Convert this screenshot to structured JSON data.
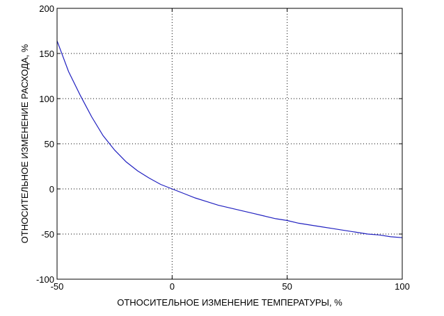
{
  "chart_data": {
    "type": "line",
    "title": "",
    "xlabel": "ОТНОСИТЕЛЬНОЕ ИЗМЕНЕНИЕ ТЕМПЕРАТУРЫ, %",
    "ylabel": "ОТНОСИТЕЛЬНОЕ ИЗМЕНЕНИЕ РАСХОДА, %",
    "xlim": [
      -50,
      100
    ],
    "ylim": [
      -100,
      200
    ],
    "xticks": [
      -50,
      0,
      50,
      100
    ],
    "yticks": [
      -100,
      -50,
      0,
      50,
      100,
      150,
      200
    ],
    "xtick_labels": [
      "-50",
      "0",
      "50",
      "100"
    ],
    "ytick_labels": [
      "-100",
      "-50",
      "0",
      "50",
      "100",
      "150",
      "200"
    ],
    "grid": true,
    "grid_style": "dotted",
    "series": [
      {
        "color": "#2020c0",
        "x": [
          -50,
          -45,
          -40,
          -35,
          -30,
          -25,
          -20,
          -15,
          -10,
          -5,
          0,
          5,
          10,
          15,
          20,
          25,
          30,
          35,
          40,
          45,
          50,
          55,
          60,
          65,
          70,
          75,
          80,
          85,
          90,
          95,
          100
        ],
        "y": [
          164,
          130,
          104,
          80,
          59,
          43,
          30,
          20,
          12,
          5,
          0,
          -5,
          -10,
          -14,
          -18,
          -21,
          -24,
          -27,
          -30,
          -33,
          -35,
          -38,
          -40,
          -42,
          -44,
          -46,
          -48,
          -50,
          -51,
          -53,
          -54
        ]
      }
    ]
  }
}
